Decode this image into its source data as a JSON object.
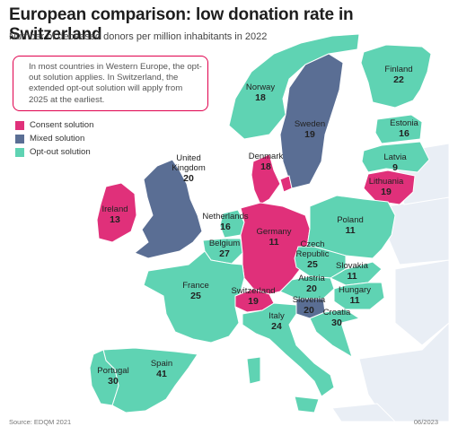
{
  "title": "European comparison: low donation rate in Switzerland",
  "subtitle": "Number of deceased donors per million inhabitants in 2022",
  "note": "In most countries in Western Europe, the opt-out solution applies. In Switzerland, the extended opt-out solution will apply from 2025 at the earliest.",
  "legend": [
    {
      "key": "consent",
      "label": "Consent solution",
      "color": "#e0307a"
    },
    {
      "key": "mixed",
      "label": "Mixed solution",
      "color": "#5a6e94"
    },
    {
      "key": "optout",
      "label": "Opt-out solution",
      "color": "#5fd3b3"
    }
  ],
  "colors": {
    "consent": "#e0307a",
    "mixed": "#5a6e94",
    "optout": "#5fd3b3",
    "no_data": "#e9eef5",
    "border": "#ffffff"
  },
  "countries": [
    {
      "name": "Finland",
      "value": "22",
      "solution": "optout"
    },
    {
      "name": "Norway",
      "value": "18",
      "solution": "optout"
    },
    {
      "name": "Sweden",
      "value": "19",
      "solution": "mixed"
    },
    {
      "name": "Estonia",
      "value": "16",
      "solution": "optout"
    },
    {
      "name": "Latvia",
      "value": "9",
      "solution": "optout"
    },
    {
      "name": "Lithuania",
      "value": "19",
      "solution": "consent"
    },
    {
      "name": "Denmark",
      "value": "18",
      "solution": "consent"
    },
    {
      "name": "United Kingdom",
      "value": "20",
      "solution": "mixed"
    },
    {
      "name": "Ireland",
      "value": "13",
      "solution": "consent"
    },
    {
      "name": "Netherlands",
      "value": "16",
      "solution": "optout"
    },
    {
      "name": "Belgium",
      "value": "27",
      "solution": "optout"
    },
    {
      "name": "Germany",
      "value": "11",
      "solution": "consent"
    },
    {
      "name": "Poland",
      "value": "11",
      "solution": "optout"
    },
    {
      "name": "Czech Republic",
      "value": "25",
      "solution": "optout"
    },
    {
      "name": "Slovakia",
      "value": "11",
      "solution": "optout"
    },
    {
      "name": "Austria",
      "value": "20",
      "solution": "optout"
    },
    {
      "name": "Hungary",
      "value": "11",
      "solution": "optout"
    },
    {
      "name": "France",
      "value": "25",
      "solution": "optout"
    },
    {
      "name": "Switzerland",
      "value": "19",
      "solution": "consent"
    },
    {
      "name": "Slovenia",
      "value": "20",
      "solution": "mixed"
    },
    {
      "name": "Croatia",
      "value": "30",
      "solution": "optout"
    },
    {
      "name": "Italy",
      "value": "24",
      "solution": "optout"
    },
    {
      "name": "Spain",
      "value": "41",
      "solution": "optout"
    },
    {
      "name": "Portugal",
      "value": "30",
      "solution": "optout"
    }
  ],
  "source": "Source: EDQM 2021",
  "date": "06/2023"
}
